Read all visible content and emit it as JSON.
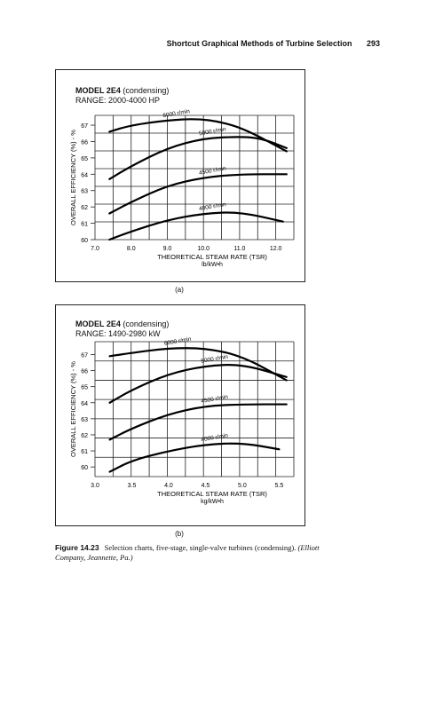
{
  "header": {
    "title": "Shortcut Graphical Methods of Turbine Selection",
    "page_number": "293"
  },
  "panels": [
    {
      "model": "MODEL 2E4",
      "mode": "(condensing)",
      "range": "RANGE: 2000-4000 HP",
      "sublabel": "(a)"
    },
    {
      "model": "MODEL 2E4",
      "mode": "(condensing)",
      "range": "RANGE: 1490-2980 kW",
      "sublabel": "(b)"
    }
  ],
  "caption": {
    "figure_label": "Figure 14.23",
    "text": "Selection charts, five-stage, single-valve turbines (condensing).",
    "source": "(Elliott Company, Jeannette, Pa.)"
  },
  "chart_data": [
    {
      "type": "line",
      "ylabel": "OVERALL EFFICIENCY (%) - %",
      "xlabel_lines": [
        "THEORETICAL STEAM RATE (TSR)",
        "lb/kW•h"
      ],
      "xlim": [
        7.0,
        12.5
      ],
      "ylim": [
        60,
        67.6
      ],
      "x_ticks": [
        "7.0",
        "8.0",
        "9.0",
        "10.0",
        "11.0",
        "12.0"
      ],
      "y_ticks": [
        "60",
        "61",
        "62",
        "63",
        "64",
        "65",
        "66",
        "67"
      ],
      "grid": true,
      "series": [
        {
          "name": "6000 r/min",
          "x": [
            7.4,
            8.0,
            9.0,
            9.8,
            10.5,
            11.2,
            12.3
          ],
          "y": [
            66.6,
            67.0,
            67.3,
            67.4,
            67.2,
            66.7,
            65.4
          ]
        },
        {
          "name": "5000 r/min",
          "x": [
            7.4,
            8.0,
            9.0,
            10.0,
            11.0,
            11.6,
            12.3
          ],
          "y": [
            63.7,
            64.5,
            65.6,
            66.2,
            66.3,
            66.2,
            65.6
          ]
        },
        {
          "name": "4500 r/min",
          "x": [
            7.4,
            8.0,
            9.0,
            10.0,
            11.0,
            12.3
          ],
          "y": [
            61.6,
            62.3,
            63.3,
            63.8,
            64.0,
            64.0
          ]
        },
        {
          "name": "4000 r/min",
          "x": [
            7.4,
            8.0,
            9.0,
            10.0,
            11.0,
            12.2
          ],
          "y": [
            60.0,
            60.5,
            61.2,
            61.6,
            61.7,
            61.1
          ]
        }
      ]
    },
    {
      "type": "line",
      "ylabel": "OVERALL EFFICIENCY (%) - %",
      "xlabel_lines": [
        "THEORETICAL STEAM RATE (TSR)",
        "kg/kW•h"
      ],
      "xlim": [
        3.0,
        5.7
      ],
      "ylim": [
        59.4,
        67.8
      ],
      "x_ticks": [
        "3.0",
        "3.5",
        "4.0",
        "4.5",
        "5.0",
        "5.5"
      ],
      "y_ticks": [
        "60",
        "61",
        "62",
        "63",
        "64",
        "65",
        "66",
        "67"
      ],
      "grid": true,
      "series": [
        {
          "name": "6000 r/min",
          "x": [
            3.2,
            3.5,
            4.0,
            4.5,
            5.0,
            5.6
          ],
          "y": [
            66.9,
            67.1,
            67.4,
            67.4,
            66.9,
            65.4
          ]
        },
        {
          "name": "5000 r/min",
          "x": [
            3.2,
            3.5,
            4.0,
            4.5,
            5.0,
            5.6
          ],
          "y": [
            64.0,
            64.8,
            65.8,
            66.3,
            66.4,
            65.6
          ]
        },
        {
          "name": "4500 r/min",
          "x": [
            3.2,
            3.5,
            4.0,
            4.5,
            5.0,
            5.6
          ],
          "y": [
            61.7,
            62.4,
            63.3,
            63.8,
            63.9,
            63.9
          ]
        },
        {
          "name": "4000 r/min",
          "x": [
            3.2,
            3.5,
            4.0,
            4.5,
            5.0,
            5.5
          ],
          "y": [
            59.7,
            60.4,
            61.0,
            61.4,
            61.5,
            61.1
          ]
        }
      ]
    }
  ]
}
